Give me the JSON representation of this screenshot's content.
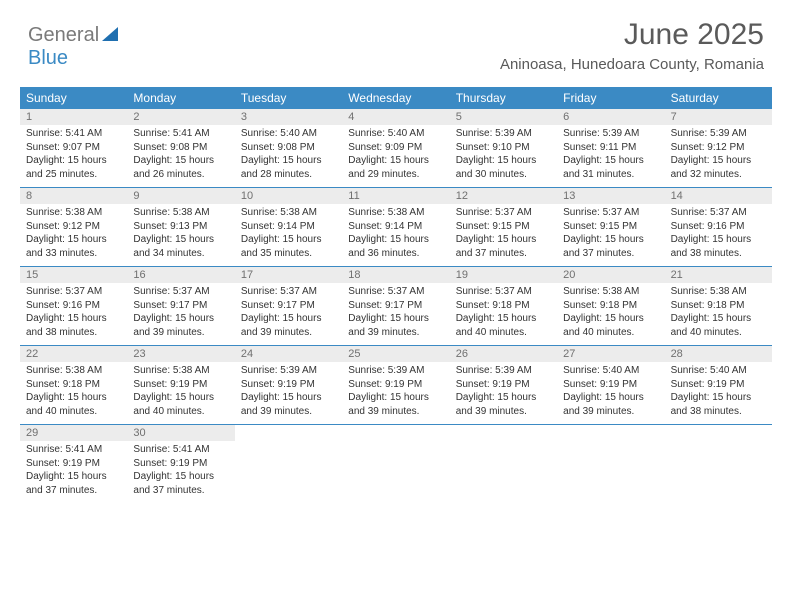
{
  "logo": {
    "general": "General",
    "blue": "Blue"
  },
  "title": "June 2025",
  "location": "Aninoasa, Hunedoara County, Romania",
  "colors": {
    "header_blue": "#3b8ac4",
    "logo_gray": "#7a7a7a",
    "daynum_bg": "#ececec",
    "daynum_fg": "#707070",
    "text": "#333333"
  },
  "dayNames": [
    "Sunday",
    "Monday",
    "Tuesday",
    "Wednesday",
    "Thursday",
    "Friday",
    "Saturday"
  ],
  "weeks": [
    [
      {
        "n": "1",
        "sr": "5:41 AM",
        "ss": "9:07 PM",
        "dl": "15 hours and 25 minutes."
      },
      {
        "n": "2",
        "sr": "5:41 AM",
        "ss": "9:08 PM",
        "dl": "15 hours and 26 minutes."
      },
      {
        "n": "3",
        "sr": "5:40 AM",
        "ss": "9:08 PM",
        "dl": "15 hours and 28 minutes."
      },
      {
        "n": "4",
        "sr": "5:40 AM",
        "ss": "9:09 PM",
        "dl": "15 hours and 29 minutes."
      },
      {
        "n": "5",
        "sr": "5:39 AM",
        "ss": "9:10 PM",
        "dl": "15 hours and 30 minutes."
      },
      {
        "n": "6",
        "sr": "5:39 AM",
        "ss": "9:11 PM",
        "dl": "15 hours and 31 minutes."
      },
      {
        "n": "7",
        "sr": "5:39 AM",
        "ss": "9:12 PM",
        "dl": "15 hours and 32 minutes."
      }
    ],
    [
      {
        "n": "8",
        "sr": "5:38 AM",
        "ss": "9:12 PM",
        "dl": "15 hours and 33 minutes."
      },
      {
        "n": "9",
        "sr": "5:38 AM",
        "ss": "9:13 PM",
        "dl": "15 hours and 34 minutes."
      },
      {
        "n": "10",
        "sr": "5:38 AM",
        "ss": "9:14 PM",
        "dl": "15 hours and 35 minutes."
      },
      {
        "n": "11",
        "sr": "5:38 AM",
        "ss": "9:14 PM",
        "dl": "15 hours and 36 minutes."
      },
      {
        "n": "12",
        "sr": "5:37 AM",
        "ss": "9:15 PM",
        "dl": "15 hours and 37 minutes."
      },
      {
        "n": "13",
        "sr": "5:37 AM",
        "ss": "9:15 PM",
        "dl": "15 hours and 37 minutes."
      },
      {
        "n": "14",
        "sr": "5:37 AM",
        "ss": "9:16 PM",
        "dl": "15 hours and 38 minutes."
      }
    ],
    [
      {
        "n": "15",
        "sr": "5:37 AM",
        "ss": "9:16 PM",
        "dl": "15 hours and 38 minutes."
      },
      {
        "n": "16",
        "sr": "5:37 AM",
        "ss": "9:17 PM",
        "dl": "15 hours and 39 minutes."
      },
      {
        "n": "17",
        "sr": "5:37 AM",
        "ss": "9:17 PM",
        "dl": "15 hours and 39 minutes."
      },
      {
        "n": "18",
        "sr": "5:37 AM",
        "ss": "9:17 PM",
        "dl": "15 hours and 39 minutes."
      },
      {
        "n": "19",
        "sr": "5:37 AM",
        "ss": "9:18 PM",
        "dl": "15 hours and 40 minutes."
      },
      {
        "n": "20",
        "sr": "5:38 AM",
        "ss": "9:18 PM",
        "dl": "15 hours and 40 minutes."
      },
      {
        "n": "21",
        "sr": "5:38 AM",
        "ss": "9:18 PM",
        "dl": "15 hours and 40 minutes."
      }
    ],
    [
      {
        "n": "22",
        "sr": "5:38 AM",
        "ss": "9:18 PM",
        "dl": "15 hours and 40 minutes."
      },
      {
        "n": "23",
        "sr": "5:38 AM",
        "ss": "9:19 PM",
        "dl": "15 hours and 40 minutes."
      },
      {
        "n": "24",
        "sr": "5:39 AM",
        "ss": "9:19 PM",
        "dl": "15 hours and 39 minutes."
      },
      {
        "n": "25",
        "sr": "5:39 AM",
        "ss": "9:19 PM",
        "dl": "15 hours and 39 minutes."
      },
      {
        "n": "26",
        "sr": "5:39 AM",
        "ss": "9:19 PM",
        "dl": "15 hours and 39 minutes."
      },
      {
        "n": "27",
        "sr": "5:40 AM",
        "ss": "9:19 PM",
        "dl": "15 hours and 39 minutes."
      },
      {
        "n": "28",
        "sr": "5:40 AM",
        "ss": "9:19 PM",
        "dl": "15 hours and 38 minutes."
      }
    ],
    [
      {
        "n": "29",
        "sr": "5:41 AM",
        "ss": "9:19 PM",
        "dl": "15 hours and 37 minutes."
      },
      {
        "n": "30",
        "sr": "5:41 AM",
        "ss": "9:19 PM",
        "dl": "15 hours and 37 minutes."
      },
      null,
      null,
      null,
      null,
      null
    ]
  ],
  "labels": {
    "sunrise": "Sunrise:",
    "sunset": "Sunset:",
    "daylight": "Daylight:"
  }
}
